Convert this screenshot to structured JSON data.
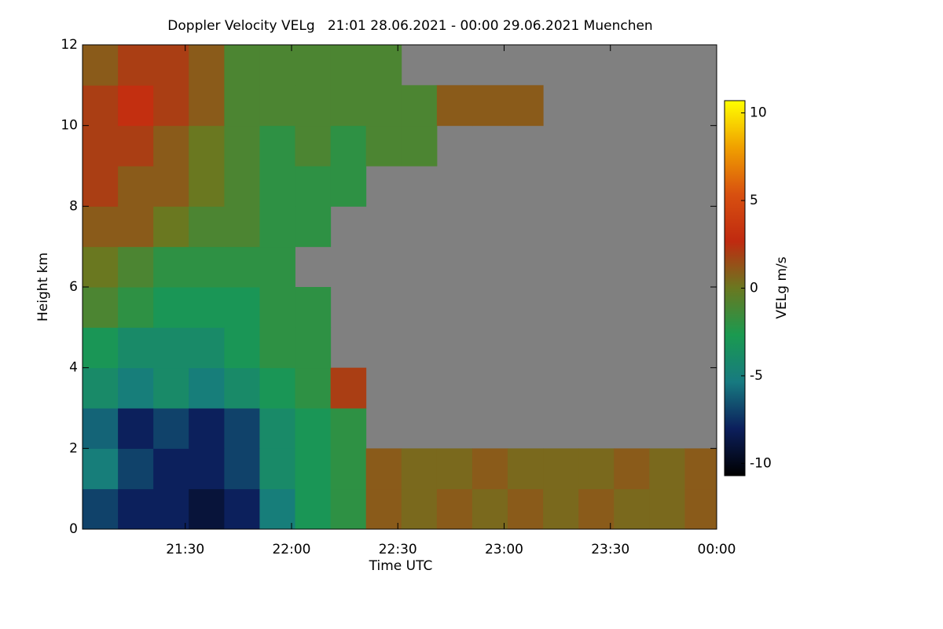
{
  "chart_data": {
    "type": "heatmap",
    "title": "Doppler Velocity VELg   21:01 28.06.2021 - 00:00 29.06.2021 Muenchen",
    "x_label": "Time UTC",
    "y_label": "Height km",
    "colorbar_label": "VELg m/s",
    "background": "#808080",
    "x": [
      21.1,
      21.267,
      21.433,
      21.6,
      21.767,
      21.933,
      22.1,
      22.267,
      22.433,
      22.6,
      22.767,
      22.933,
      23.1,
      23.267,
      23.433,
      23.6,
      23.767,
      23.933
    ],
    "y": [
      0.5,
      1.5,
      2.5,
      3.5,
      4.5,
      5.5,
      6.5,
      7.5,
      8.5,
      9.5,
      10.5,
      11.5
    ],
    "z": [
      [
        -7,
        -8,
        -8,
        -9,
        -8,
        -5,
        -3,
        -2,
        1,
        0.5,
        1,
        0.5,
        1,
        0.5,
        1,
        0.5,
        0.5,
        1
      ],
      [
        -5,
        -7,
        -8,
        -8,
        -7,
        -4,
        -3,
        -2,
        1,
        0.5,
        0.5,
        1,
        0.5,
        0.5,
        0.5,
        1,
        0.5,
        1
      ],
      [
        -6,
        -8,
        -7,
        -8,
        -7,
        -4,
        -3,
        -2,
        null,
        null,
        null,
        null,
        null,
        null,
        null,
        null,
        null,
        null
      ],
      [
        -4,
        -5,
        -4,
        -5,
        -4,
        -3,
        -2,
        2,
        null,
        null,
        null,
        null,
        null,
        null,
        null,
        null,
        null,
        null
      ],
      [
        -3,
        -4,
        -4,
        -4,
        -3,
        -2,
        -2,
        null,
        null,
        null,
        null,
        null,
        null,
        null,
        null,
        null,
        null,
        null
      ],
      [
        -1,
        -2,
        -3,
        -3,
        -3,
        -2,
        -2,
        null,
        null,
        null,
        null,
        null,
        null,
        null,
        null,
        null,
        null,
        null
      ],
      [
        0,
        -1,
        -2,
        -2,
        -2,
        -2,
        null,
        null,
        null,
        null,
        null,
        null,
        null,
        null,
        null,
        null,
        null,
        null
      ],
      [
        1,
        1,
        0,
        -1,
        -1,
        -2,
        -2,
        null,
        null,
        null,
        null,
        null,
        null,
        null,
        null,
        null,
        null,
        null
      ],
      [
        2,
        1,
        1,
        0,
        -1,
        -2,
        -2,
        -2,
        null,
        null,
        null,
        null,
        null,
        null,
        null,
        null,
        null,
        null
      ],
      [
        2,
        2,
        1,
        0,
        -1,
        -2,
        -1,
        -2,
        -1,
        -1,
        null,
        null,
        null,
        null,
        null,
        null,
        null,
        null
      ],
      [
        2,
        3,
        2,
        1,
        -1,
        -1,
        -1,
        -1,
        -1,
        -1,
        1,
        1,
        1,
        null,
        null,
        null,
        null,
        null
      ],
      [
        1,
        2,
        2,
        1,
        -1,
        -1,
        -1,
        -1,
        -1,
        null,
        null,
        null,
        null,
        null,
        null,
        null,
        null,
        null
      ]
    ],
    "xlim": [
      21.0167,
      24
    ],
    "xticks": [
      {
        "value": 21.5,
        "label": "21:30"
      },
      {
        "value": 22,
        "label": "22:00"
      },
      {
        "value": 22.5,
        "label": "22:30"
      },
      {
        "value": 23,
        "label": "23:00"
      },
      {
        "value": 23.5,
        "label": "23:30"
      },
      {
        "value": 24,
        "label": "00:00"
      }
    ],
    "ylim": [
      0,
      12
    ],
    "yticks": [
      0,
      2,
      4,
      6,
      8,
      10,
      12
    ],
    "zlim": [
      -10.7,
      10.7
    ],
    "zticks": [
      -10,
      -5,
      0,
      5,
      10
    ],
    "colormap": [
      "#000000",
      "#0c1f5c",
      "#177a80",
      "#1a9a50",
      "#6a7820",
      "#c02a10",
      "#d85010",
      "#f0a000",
      "#ffff00"
    ]
  }
}
